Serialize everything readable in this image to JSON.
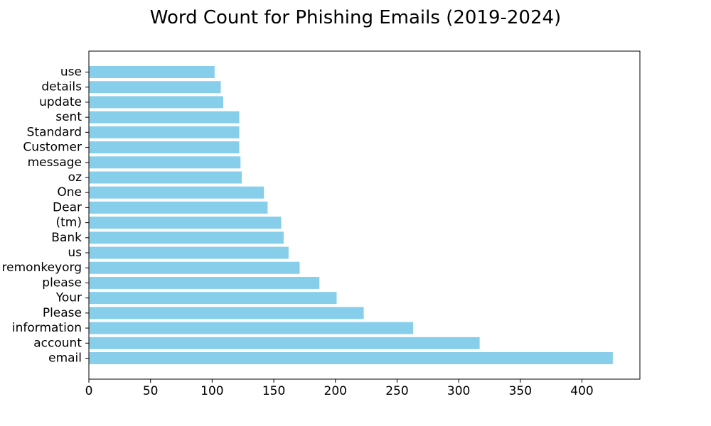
{
  "chart_data": {
    "type": "bar",
    "orientation": "horizontal",
    "title": "Word Count for Phishing Emails (2019-2024)",
    "xlabel": "",
    "ylabel": "",
    "xlim": [
      0,
      447
    ],
    "x_ticks": [
      0,
      50,
      100,
      150,
      200,
      250,
      300,
      350,
      400
    ],
    "grid": false,
    "bar_color": "#87CEEB",
    "categories": [
      "email",
      "account",
      "information",
      "Please",
      "Your",
      "please",
      "remonkeyorg",
      "us",
      "Bank",
      "(tm)",
      "Dear",
      "One",
      "oz",
      "message",
      "Customer",
      "Standard",
      "sent",
      "update",
      "details",
      "use"
    ],
    "values": [
      425,
      317,
      263,
      223,
      201,
      187,
      171,
      162,
      158,
      156,
      145,
      142,
      124,
      123,
      122,
      122,
      122,
      109,
      107,
      102
    ]
  }
}
